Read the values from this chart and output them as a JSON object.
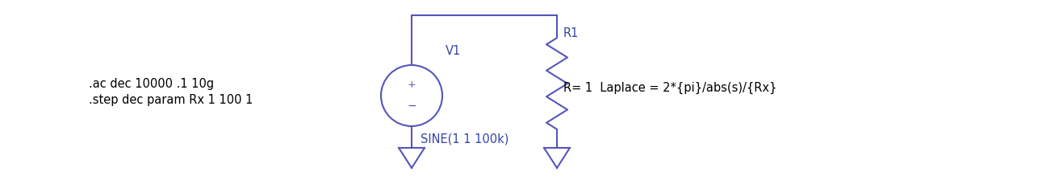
{
  "bg_color": "#ffffff",
  "circuit_color": "#5555bb",
  "text_color_dark": "#000000",
  "text_color_blue": "#3344aa",
  "spice_text1": ".ac dec 10000 .1 10g",
  "spice_text2": ".step dec param Rx 1 100 1",
  "v1_label": "V1",
  "v1_sine": "SINE(1 1 100k)",
  "r1_label": "R1",
  "r1_value": "R= 1  Laplace = 2*{pi}/abs(s)/{Rx}",
  "plus_label": "+",
  "minus_label": "-",
  "figsize": [
    12.86,
    2.29
  ],
  "dpi": 100
}
